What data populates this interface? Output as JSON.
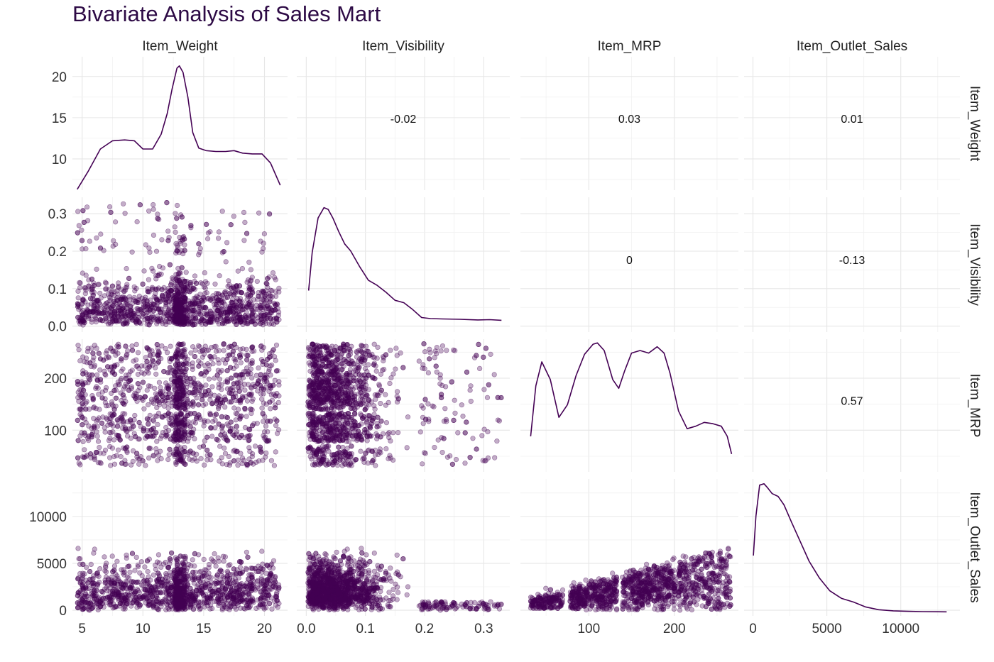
{
  "title": "Bivariate Analysis of Sales Mart",
  "colors": {
    "point": "#440154",
    "line": "#440154",
    "grid": "#e6e6e6",
    "text": "#222222"
  },
  "chart_data": {
    "type": "scatter",
    "title": "Bivariate Analysis of Sales Mart",
    "layout": "pairs-matrix",
    "variables": [
      "Item_Weight",
      "Item_Visibility",
      "Item_MRP",
      "Item_Outlet_Sales"
    ],
    "ranges": {
      "Item_Weight": [
        4.2,
        21.9
      ],
      "Item_Visibility": [
        -0.016,
        0.344
      ],
      "Item_MRP": [
        20,
        275
      ],
      "Item_Outlet_Sales": [
        -600,
        14000
      ]
    },
    "diag_y_range": {
      "Item_Weight": [
        6.2,
        22.4
      ],
      "Item_Visibility": [
        -0.03,
        0.36
      ],
      "Item_MRP": [
        0.00018,
        0.0107
      ],
      "Item_Outlet_Sales": [
        -1.4e-05,
        0.000472
      ]
    },
    "ticks": {
      "Item_Weight": [
        5,
        10,
        15,
        20
      ],
      "Item_Visibility": [
        0.0,
        0.1,
        0.2,
        0.3
      ],
      "Item_MRP": [
        100,
        200
      ],
      "Item_Outlet_Sales": [
        0,
        5000,
        10000
      ]
    },
    "x_tick_labels": {
      "Item_Weight": [
        "5",
        "10",
        "15",
        "20"
      ],
      "Item_Visibility": [
        "0.0",
        "0.1",
        "0.2",
        "0.3"
      ],
      "Item_MRP": [
        "100",
        "200"
      ],
      "Item_Outlet_Sales": [
        "0",
        "5000",
        "10000"
      ]
    },
    "y_tick_labels": {
      "Item_Weight": [
        "10",
        "15",
        "20"
      ],
      "Item_Visibility": [
        "0.0",
        "0.1",
        "0.2",
        "0.3"
      ],
      "Item_MRP": [
        "100",
        "200"
      ],
      "Item_Outlet_Sales": [
        "0",
        "5000",
        "10000"
      ]
    },
    "y_tick_values_row0": [
      10,
      15,
      20
    ],
    "correlations": [
      {
        "row": "Item_Weight",
        "col": "Item_Visibility",
        "label": "-0.02",
        "value": -0.02
      },
      {
        "row": "Item_Weight",
        "col": "Item_MRP",
        "label": "0.03",
        "value": 0.03
      },
      {
        "row": "Item_Weight",
        "col": "Item_Outlet_Sales",
        "label": "0.01",
        "value": 0.01
      },
      {
        "row": "Item_Visibility",
        "col": "Item_MRP",
        "label": "0",
        "value": 0
      },
      {
        "row": "Item_Visibility",
        "col": "Item_Outlet_Sales",
        "label": "-0.13",
        "value": -0.13
      },
      {
        "row": "Item_MRP",
        "col": "Item_Outlet_Sales",
        "label": "0.57",
        "value": 0.57
      }
    ],
    "densities": {
      "Item_Weight": {
        "x": [
          4.6,
          5.5,
          6.5,
          7.5,
          8.5,
          9.3,
          10.0,
          10.8,
          11.5,
          12.0,
          12.4,
          12.8,
          13.0,
          13.3,
          13.7,
          14.1,
          14.6,
          15.2,
          16.0,
          16.8,
          17.5,
          18.2,
          19.0,
          19.8,
          20.5,
          21.3
        ],
        "y": [
          6.3,
          8.5,
          11.2,
          12.2,
          12.3,
          12.2,
          11.2,
          11.2,
          13.0,
          15.5,
          18.5,
          21.0,
          21.3,
          20.5,
          17.5,
          13.2,
          11.3,
          11.0,
          10.9,
          10.9,
          11.0,
          10.7,
          10.6,
          10.6,
          9.5,
          6.8
        ]
      },
      "Item_Visibility": {
        "x": [
          0.004,
          0.01,
          0.02,
          0.03,
          0.037,
          0.045,
          0.055,
          0.065,
          0.075,
          0.09,
          0.105,
          0.12,
          0.135,
          0.15,
          0.165,
          0.18,
          0.195,
          0.21,
          0.23,
          0.26,
          0.29,
          0.31,
          0.33
        ],
        "y": [
          0.09,
          0.2,
          0.3,
          0.33,
          0.325,
          0.3,
          0.26,
          0.225,
          0.205,
          0.16,
          0.12,
          0.105,
          0.085,
          0.062,
          0.055,
          0.035,
          0.012,
          0.009,
          0.008,
          0.007,
          0.005,
          0.006,
          0.004
        ]
      },
      "Item_MRP": {
        "x": [
          32,
          38,
          45,
          55,
          65,
          75,
          85,
          95,
          105,
          110,
          118,
          128,
          135,
          142,
          150,
          160,
          170,
          180,
          188,
          195,
          205,
          215,
          225,
          235,
          245,
          255,
          262,
          267
        ],
        "y": [
          0.003,
          0.007,
          0.0089,
          0.0075,
          0.0045,
          0.0055,
          0.0078,
          0.0095,
          0.0103,
          0.0104,
          0.0098,
          0.0075,
          0.0068,
          0.0082,
          0.0096,
          0.0098,
          0.0096,
          0.0101,
          0.0096,
          0.008,
          0.005,
          0.0036,
          0.0038,
          0.0041,
          0.004,
          0.0038,
          0.003,
          0.0016
        ]
      },
      "Item_Outlet_Sales": {
        "x": [
          30,
          200,
          450,
          750,
          1000,
          1300,
          1700,
          2100,
          2600,
          3200,
          3800,
          4500,
          5200,
          6000,
          6800,
          7600,
          8500,
          9500,
          10500,
          11500,
          12500,
          13100
        ],
        "y": [
          0.0002,
          0.00034,
          0.00045,
          0.000455,
          0.00044,
          0.00042,
          0.00041,
          0.00038,
          0.00032,
          0.00025,
          0.00018,
          0.00012,
          7.5e-05,
          4.8e-05,
          3.5e-05,
          1.8e-05,
          8e-06,
          4e-06,
          2e-06,
          1e-06,
          5e-07,
          4e-07
        ]
      }
    },
    "scatter_sample_seed": 17,
    "scatter_points_per_panel": 1600
  }
}
